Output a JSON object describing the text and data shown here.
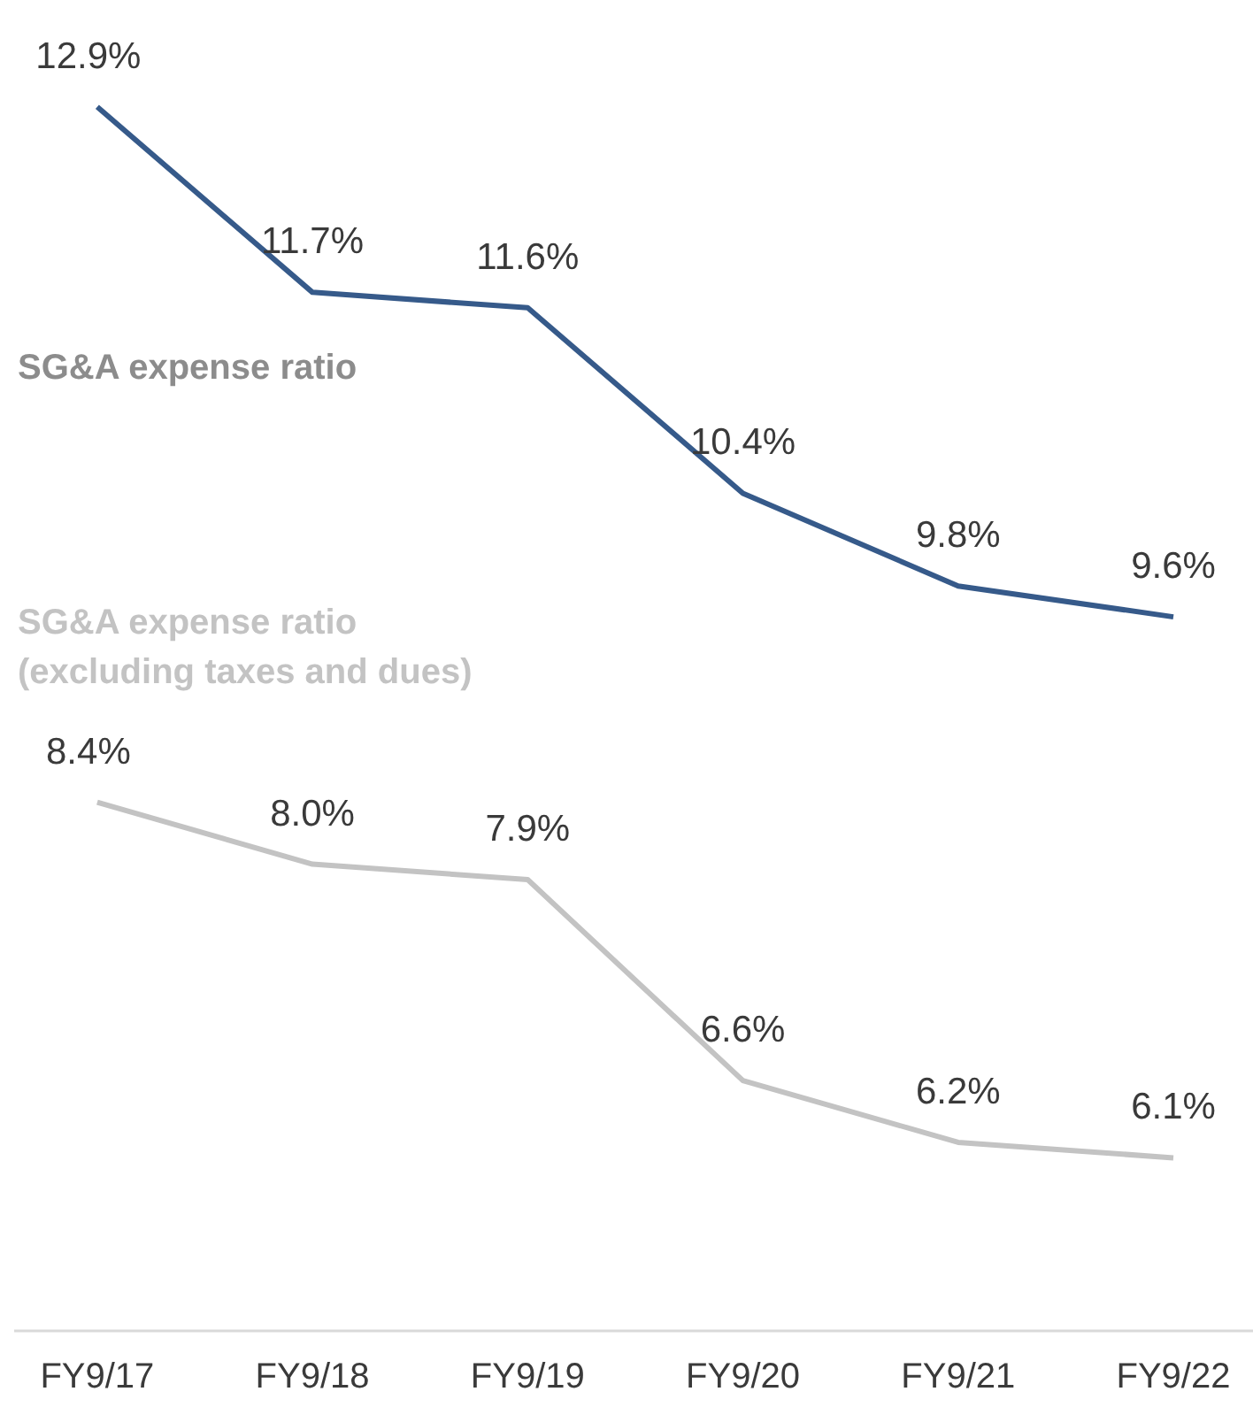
{
  "chart_data": {
    "type": "line",
    "categories": [
      "FY9/17",
      "FY9/18",
      "FY9/19",
      "FY9/20",
      "FY9/21",
      "FY9/22"
    ],
    "tick_labels": "x",
    "marker": "none",
    "line_style": "solid",
    "series": [
      {
        "name": "SG&A expense ratio",
        "color": "#365a8a",
        "values": [
          12.9,
          11.7,
          11.6,
          10.4,
          9.8,
          9.6
        ],
        "value_labels": [
          "12.9%",
          "11.7%",
          "11.6%",
          "10.4%",
          "9.8%",
          "9.6%"
        ]
      },
      {
        "name": "SG&A expense ratio\n(excluding taxes and dues)",
        "color": "#c3c3c3",
        "values": [
          8.4,
          8.0,
          7.9,
          6.6,
          6.2,
          6.1
        ],
        "value_labels": [
          "8.4%",
          "8.0%",
          "7.9%",
          "6.6%",
          "6.2%",
          "6.1%"
        ]
      }
    ]
  }
}
